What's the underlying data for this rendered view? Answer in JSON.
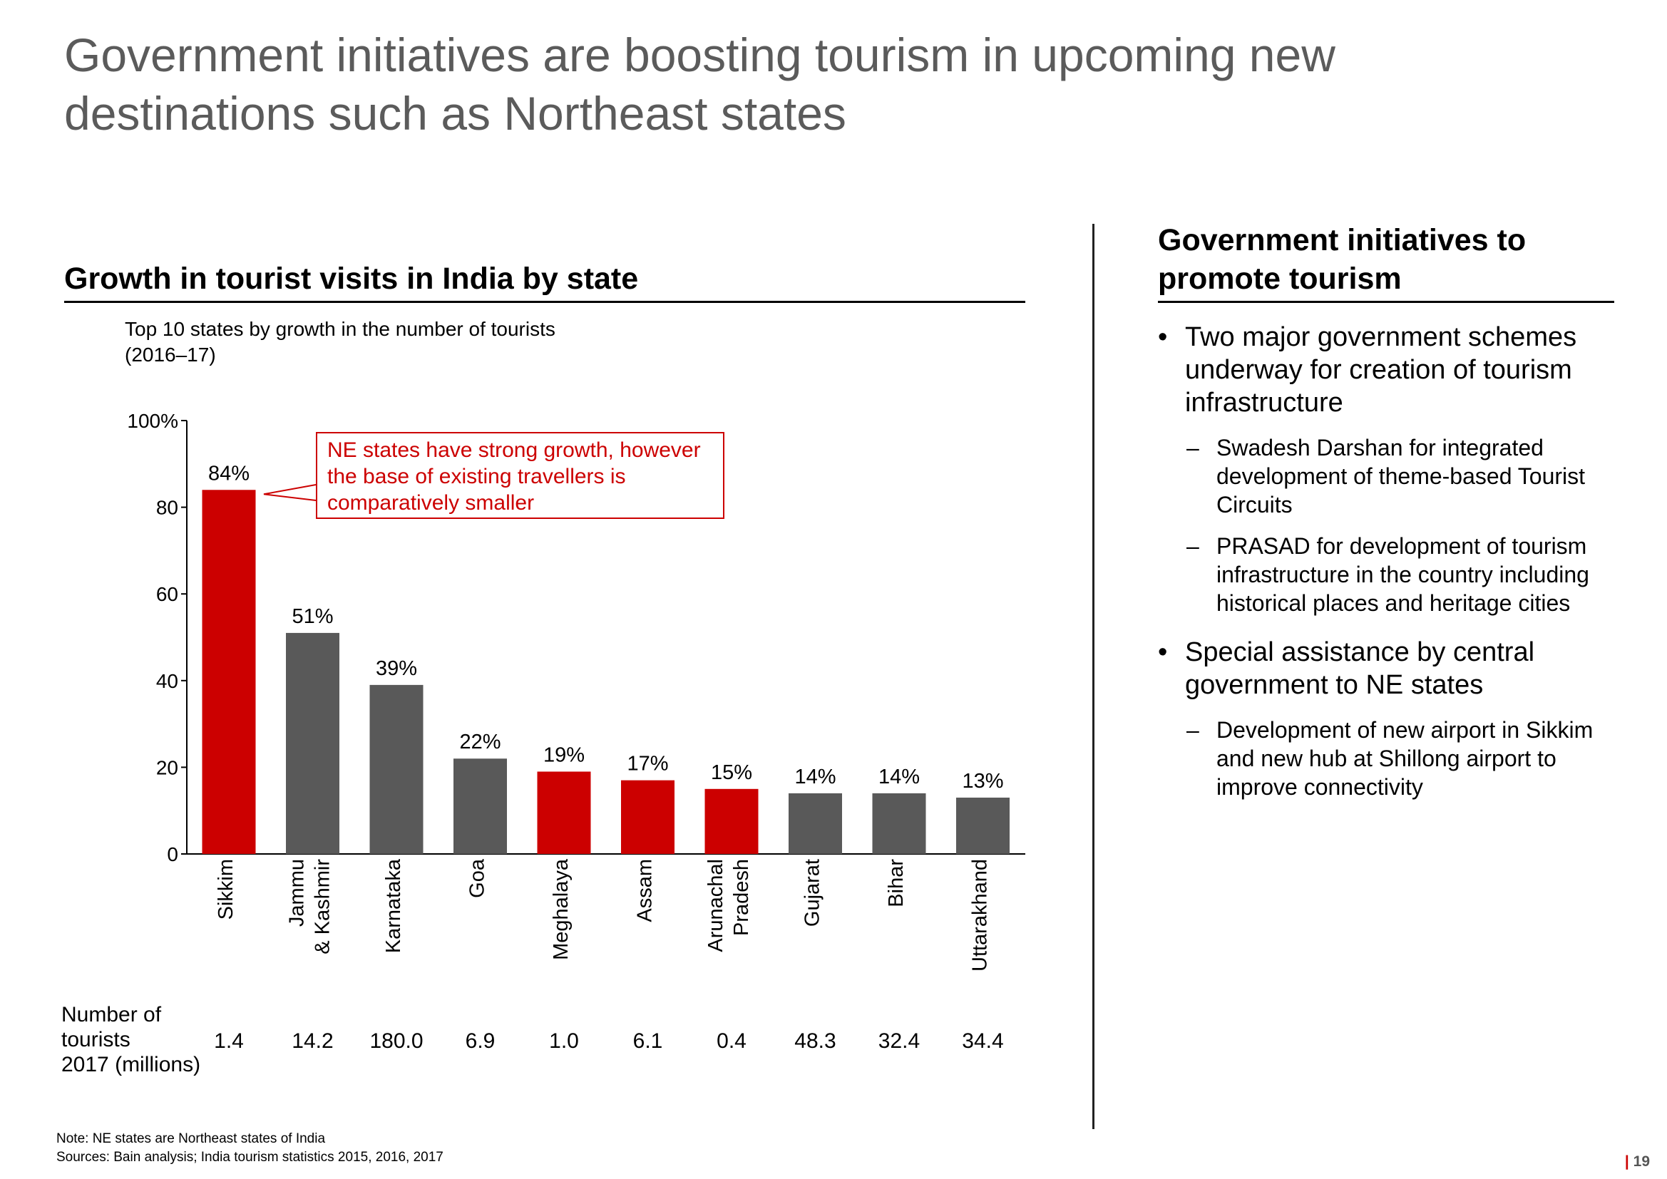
{
  "title": "Government initiatives are boosting tourism in upcoming new destinations such as Northeast states",
  "left_section": {
    "heading": "Growth in tourist visits in India by state",
    "subtitle_line1": "Top 10 states by growth in the number of tourists",
    "subtitle_line2": "(2016–17)",
    "callout": "NE states have strong growth, however the base of existing travellers is comparatively smaller",
    "tourists_label_line1": "Number of",
    "tourists_label_line2": "tourists",
    "tourists_label_line3": "2017 (millions)"
  },
  "chart_data": {
    "type": "bar",
    "title": "",
    "xlabel": "",
    "ylabel": "",
    "ylim": [
      0,
      100
    ],
    "y_ticks": [
      "0",
      "20",
      "40",
      "60",
      "80",
      "100%"
    ],
    "y_tick_values": [
      0,
      20,
      40,
      60,
      80,
      100
    ],
    "categories": [
      [
        "Sikkim"
      ],
      [
        "Jammu",
        "& Kashmir"
      ],
      [
        "Karnataka"
      ],
      [
        "Goa"
      ],
      [
        "Meghalaya"
      ],
      [
        "Assam"
      ],
      [
        "Arunachal",
        "Pradesh"
      ],
      [
        "Gujarat"
      ],
      [
        "Bihar"
      ],
      [
        "Uttarakhand"
      ]
    ],
    "values": [
      84,
      51,
      39,
      22,
      19,
      17,
      15,
      14,
      14,
      13
    ],
    "value_labels": [
      "84%",
      "51%",
      "39%",
      "22%",
      "19%",
      "17%",
      "15%",
      "14%",
      "14%",
      "13%"
    ],
    "is_ne_state": [
      true,
      false,
      false,
      false,
      true,
      true,
      true,
      false,
      false,
      false
    ],
    "tourists_2017_millions": [
      "1.4",
      "14.2",
      "180.0",
      "6.9",
      "1.0",
      "6.1",
      "0.4",
      "48.3",
      "32.4",
      "34.4"
    ],
    "colors": {
      "ne": "#cc0000",
      "other": "#595959"
    },
    "grid": false
  },
  "right_section": {
    "heading_line1": "Government initiatives to",
    "heading_line2": "promote tourism",
    "bullets": [
      {
        "text": "Two major government schemes underway for creation of tourism infrastructure",
        "subs": [
          "Swadesh Darshan for integrated development of theme-based Tourist Circuits",
          "PRASAD for development of tourism infrastructure in the country including historical places and heritage cities"
        ]
      },
      {
        "text": "Special assistance by central government to NE states",
        "subs": [
          "Development of new airport in Sikkim and new hub at Shillong airport to improve connectivity"
        ]
      }
    ]
  },
  "footnotes": {
    "note": "Note: NE states are Northeast states of India",
    "sources": "Sources: Bain analysis; India tourism statistics 2015, 2016, 2017"
  },
  "page_number": "19",
  "page_marker": "|"
}
